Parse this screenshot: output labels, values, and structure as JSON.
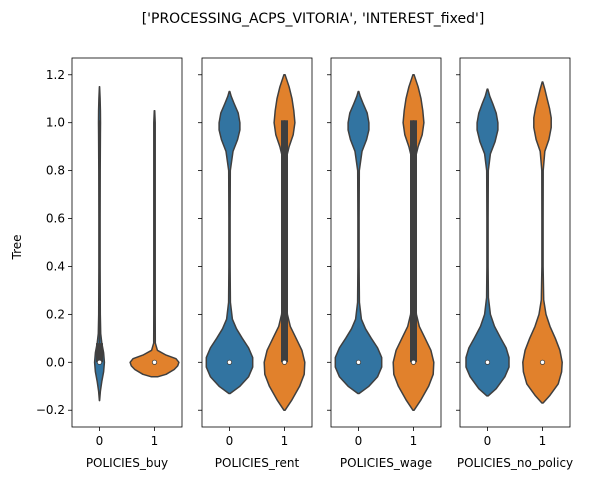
{
  "chart_data": {
    "type": "violin",
    "title": "['PROCESSING_ACPS_VITORIA', 'INTEREST_fixed']",
    "ylabel": "Tree",
    "ylim": [
      -0.27,
      1.27
    ],
    "yticks": [
      -0.2,
      0.0,
      0.2,
      0.4,
      0.6,
      0.8,
      1.0,
      1.2
    ],
    "ytick_labels": [
      "−0.2",
      "0.0",
      "0.2",
      "0.4",
      "0.6",
      "0.8",
      "1.0",
      "1.2"
    ],
    "categories": [
      "0",
      "1"
    ],
    "colors": {
      "0": "#3274a1",
      "1": "#e1812c",
      "outline": "#3f3f3f"
    },
    "panels": [
      {
        "xlabel": "POLICIES_buy",
        "violins": [
          {
            "category": "0",
            "min": -0.16,
            "max": 1.15,
            "median": 0.0,
            "q1": 0.0,
            "q3": 0.08,
            "wmin": 0.0,
            "wmax": 1.01,
            "density": [
              [
                -0.16,
                0.002
              ],
              [
                -0.12,
                0.015
              ],
              [
                -0.08,
                0.04
              ],
              [
                -0.04,
                0.07
              ],
              [
                0.0,
                0.085
              ],
              [
                0.04,
                0.07
              ],
              [
                0.08,
                0.04
              ],
              [
                0.12,
                0.02
              ],
              [
                0.2,
                0.013
              ],
              [
                0.4,
                0.01
              ],
              [
                0.6,
                0.01
              ],
              [
                0.8,
                0.012
              ],
              [
                0.95,
                0.016
              ],
              [
                1.0,
                0.018
              ],
              [
                1.05,
                0.016
              ],
              [
                1.1,
                0.01
              ],
              [
                1.15,
                0.002
              ]
            ]
          },
          {
            "category": "1",
            "min": -0.06,
            "max": 1.05,
            "median": 0.0,
            "q1": 0.0,
            "q3": 0.0,
            "wmin": 0.0,
            "wmax": 0.0,
            "density": [
              [
                -0.06,
                0.06
              ],
              [
                -0.05,
                0.2
              ],
              [
                -0.03,
                0.34
              ],
              [
                -0.015,
                0.4
              ],
              [
                0.0,
                0.42
              ],
              [
                0.015,
                0.37
              ],
              [
                0.03,
                0.2
              ],
              [
                0.05,
                0.05
              ],
              [
                0.08,
                0.013
              ],
              [
                0.2,
                0.012
              ],
              [
                0.5,
                0.012
              ],
              [
                0.8,
                0.012
              ],
              [
                1.0,
                0.012
              ],
              [
                1.05,
                0.004
              ]
            ]
          }
        ]
      },
      {
        "xlabel": "POLICIES_rent",
        "violins": [
          {
            "category": "0",
            "min": -0.13,
            "max": 1.13,
            "median": 0.0,
            "q1": 0.0,
            "q3": 0.0,
            "wmin": 0.0,
            "wmax": 0.0,
            "density": [
              [
                -0.13,
                0.01
              ],
              [
                -0.1,
                0.18
              ],
              [
                -0.06,
                0.33
              ],
              [
                -0.02,
                0.4
              ],
              [
                0.02,
                0.4
              ],
              [
                0.06,
                0.33
              ],
              [
                0.1,
                0.22
              ],
              [
                0.14,
                0.12
              ],
              [
                0.18,
                0.05
              ],
              [
                0.25,
                0.015
              ],
              [
                0.4,
                0.01
              ],
              [
                0.6,
                0.01
              ],
              [
                0.8,
                0.014
              ],
              [
                0.88,
                0.06
              ],
              [
                0.93,
                0.14
              ],
              [
                0.97,
                0.18
              ],
              [
                1.0,
                0.18
              ],
              [
                1.04,
                0.15
              ],
              [
                1.08,
                0.08
              ],
              [
                1.11,
                0.03
              ],
              [
                1.13,
                0.005
              ]
            ]
          },
          {
            "category": "1",
            "min": -0.2,
            "max": 1.2,
            "median": 0.0,
            "q1": 0.0,
            "q3": 1.01,
            "wmin": 0.0,
            "wmax": 1.01,
            "density": [
              [
                -0.2,
                0.01
              ],
              [
                -0.16,
                0.12
              ],
              [
                -0.1,
                0.26
              ],
              [
                -0.05,
                0.34
              ],
              [
                0.0,
                0.35
              ],
              [
                0.05,
                0.3
              ],
              [
                0.1,
                0.2
              ],
              [
                0.15,
                0.1
              ],
              [
                0.2,
                0.05
              ],
              [
                0.26,
                0.03
              ],
              [
                0.3,
                0.02
              ],
              [
                0.5,
                0.012
              ],
              [
                0.7,
                0.014
              ],
              [
                0.85,
                0.03
              ],
              [
                0.9,
                0.08
              ],
              [
                0.95,
                0.15
              ],
              [
                1.0,
                0.18
              ],
              [
                1.05,
                0.16
              ],
              [
                1.1,
                0.13
              ],
              [
                1.15,
                0.08
              ],
              [
                1.2,
                0.01
              ]
            ]
          }
        ]
      },
      {
        "xlabel": "POLICIES_wage",
        "violins": [
          {
            "category": "0",
            "min": -0.13,
            "max": 1.13,
            "median": 0.0,
            "q1": 0.0,
            "q3": 0.0,
            "wmin": 0.0,
            "wmax": 0.0,
            "density": [
              [
                -0.13,
                0.01
              ],
              [
                -0.1,
                0.18
              ],
              [
                -0.06,
                0.33
              ],
              [
                -0.02,
                0.4
              ],
              [
                0.02,
                0.4
              ],
              [
                0.06,
                0.33
              ],
              [
                0.1,
                0.22
              ],
              [
                0.14,
                0.12
              ],
              [
                0.18,
                0.05
              ],
              [
                0.25,
                0.015
              ],
              [
                0.4,
                0.01
              ],
              [
                0.6,
                0.01
              ],
              [
                0.8,
                0.014
              ],
              [
                0.88,
                0.06
              ],
              [
                0.93,
                0.14
              ],
              [
                0.97,
                0.18
              ],
              [
                1.0,
                0.18
              ],
              [
                1.04,
                0.15
              ],
              [
                1.08,
                0.08
              ],
              [
                1.11,
                0.03
              ],
              [
                1.13,
                0.005
              ]
            ]
          },
          {
            "category": "1",
            "min": -0.2,
            "max": 1.2,
            "median": 0.0,
            "q1": 0.0,
            "q3": 1.01,
            "wmin": 0.0,
            "wmax": 1.01,
            "density": [
              [
                -0.2,
                0.01
              ],
              [
                -0.16,
                0.12
              ],
              [
                -0.1,
                0.26
              ],
              [
                -0.05,
                0.34
              ],
              [
                0.0,
                0.35
              ],
              [
                0.05,
                0.3
              ],
              [
                0.1,
                0.2
              ],
              [
                0.15,
                0.1
              ],
              [
                0.2,
                0.05
              ],
              [
                0.26,
                0.03
              ],
              [
                0.3,
                0.02
              ],
              [
                0.5,
                0.012
              ],
              [
                0.7,
                0.014
              ],
              [
                0.85,
                0.03
              ],
              [
                0.9,
                0.08
              ],
              [
                0.95,
                0.15
              ],
              [
                1.0,
                0.18
              ],
              [
                1.05,
                0.16
              ],
              [
                1.1,
                0.13
              ],
              [
                1.15,
                0.08
              ],
              [
                1.2,
                0.01
              ]
            ]
          }
        ]
      },
      {
        "xlabel": "POLICIES_no_policy",
        "violins": [
          {
            "category": "0",
            "min": -0.14,
            "max": 1.14,
            "median": 0.0,
            "q1": 0.0,
            "q3": 0.0,
            "wmin": 0.0,
            "wmax": 0.0,
            "density": [
              [
                -0.14,
                0.01
              ],
              [
                -0.11,
                0.15
              ],
              [
                -0.06,
                0.3
              ],
              [
                -0.02,
                0.37
              ],
              [
                0.02,
                0.37
              ],
              [
                0.06,
                0.32
              ],
              [
                0.1,
                0.23
              ],
              [
                0.15,
                0.12
              ],
              [
                0.2,
                0.05
              ],
              [
                0.27,
                0.015
              ],
              [
                0.4,
                0.01
              ],
              [
                0.6,
                0.01
              ],
              [
                0.8,
                0.014
              ],
              [
                0.87,
                0.05
              ],
              [
                0.92,
                0.13
              ],
              [
                0.97,
                0.18
              ],
              [
                1.0,
                0.18
              ],
              [
                1.04,
                0.15
              ],
              [
                1.08,
                0.09
              ],
              [
                1.11,
                0.04
              ],
              [
                1.14,
                0.005
              ]
            ]
          },
          {
            "category": "1",
            "min": -0.17,
            "max": 1.17,
            "median": 0.0,
            "q1": 0.0,
            "q3": 0.0,
            "wmin": 0.0,
            "wmax": 0.0,
            "density": [
              [
                -0.17,
                0.01
              ],
              [
                -0.14,
                0.12
              ],
              [
                -0.09,
                0.27
              ],
              [
                -0.04,
                0.33
              ],
              [
                0.0,
                0.34
              ],
              [
                0.05,
                0.3
              ],
              [
                0.1,
                0.22
              ],
              [
                0.15,
                0.13
              ],
              [
                0.2,
                0.06
              ],
              [
                0.26,
                0.02
              ],
              [
                0.4,
                0.01
              ],
              [
                0.6,
                0.01
              ],
              [
                0.8,
                0.012
              ],
              [
                0.88,
                0.04
              ],
              [
                0.93,
                0.11
              ],
              [
                0.98,
                0.15
              ],
              [
                1.02,
                0.15
              ],
              [
                1.06,
                0.12
              ],
              [
                1.1,
                0.08
              ],
              [
                1.14,
                0.04
              ],
              [
                1.17,
                0.005
              ]
            ]
          }
        ]
      }
    ]
  }
}
